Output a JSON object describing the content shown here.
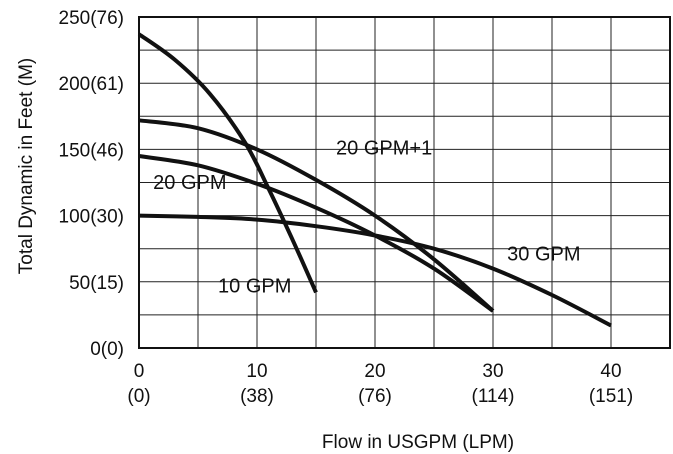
{
  "chart_data": {
    "type": "line",
    "title": "",
    "xlabel": "Flow in USGPM (LPM)",
    "ylabel": "Total Dynamic in Feet (M)",
    "xlim": [
      0,
      45
    ],
    "ylim": [
      0,
      250
    ],
    "grid": true,
    "x_ticks": [
      {
        "value": 0,
        "label": "0",
        "sub": "(0)"
      },
      {
        "value": 10,
        "label": "10",
        "sub": "(38)"
      },
      {
        "value": 20,
        "label": "20",
        "sub": "(76)"
      },
      {
        "value": 30,
        "label": "30",
        "sub": "(114)"
      },
      {
        "value": 40,
        "label": "40",
        "sub": "(151)"
      }
    ],
    "y_ticks": [
      {
        "value": 0,
        "label": "0(0)"
      },
      {
        "value": 50,
        "label": "50(15)"
      },
      {
        "value": 100,
        "label": "100(30)"
      },
      {
        "value": 150,
        "label": "150(46)"
      },
      {
        "value": 200,
        "label": "200(61)"
      },
      {
        "value": 250,
        "label": "250(76)"
      }
    ],
    "series": [
      {
        "name": "10 GPM",
        "x": [
          0,
          3,
          6,
          9,
          11,
          13,
          15
        ],
        "y": [
          237,
          218,
          192,
          155,
          120,
          82,
          42
        ]
      },
      {
        "name": "20 GPM+1",
        "x": [
          0,
          5,
          10,
          15,
          20,
          25,
          30
        ],
        "y": [
          172,
          166,
          150,
          127,
          100,
          67,
          28
        ]
      },
      {
        "name": "20 GPM",
        "x": [
          0,
          5,
          10,
          15,
          20,
          25,
          30
        ],
        "y": [
          145,
          138,
          124,
          106,
          85,
          60,
          28
        ]
      },
      {
        "name": "30 GPM",
        "x": [
          0,
          5,
          10,
          15,
          20,
          25,
          30,
          35,
          40
        ],
        "y": [
          100,
          99,
          97,
          92,
          85,
          75,
          60,
          40,
          17
        ]
      }
    ]
  }
}
